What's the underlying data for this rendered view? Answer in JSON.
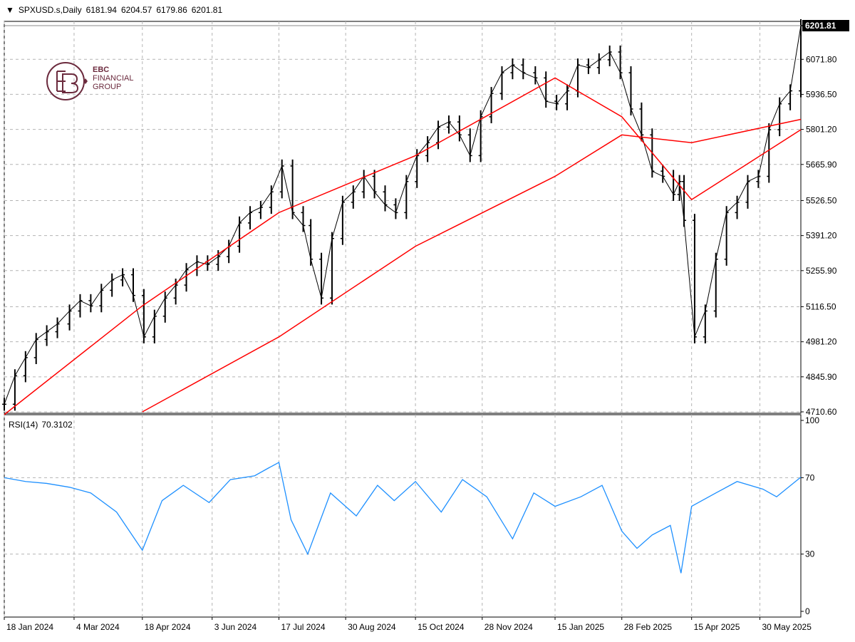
{
  "header": {
    "symbol": "SPXUSD.s,Daily",
    "open": "6181.94",
    "high": "6204.57",
    "low": "6179.86",
    "close": "6201.81"
  },
  "logo": {
    "line1": "EBC",
    "line2": "FINANCIAL",
    "line3": "GROUP",
    "brand_color": "#6b2a3d"
  },
  "rsi_header": {
    "label": "RSI(14)",
    "value": "70.3102"
  },
  "colors": {
    "price": "#000000",
    "ma": "#ff0000",
    "rsi": "#1e90ff",
    "grid": "#b4b4b4",
    "current_bg": "#000000"
  },
  "chart_data": [
    {
      "type": "line",
      "title": "SPXUSD.s,Daily",
      "style": "ohlc-bars",
      "ylim": [
        4710.6,
        6201.81
      ],
      "grid": true,
      "current_price_label": "6201.81",
      "y_ticks": [
        "6071.80",
        "5936.50",
        "5801.20",
        "5665.90",
        "5526.50",
        "5391.20",
        "5255.90",
        "5116.50",
        "4981.20",
        "4845.90",
        "4710.60"
      ],
      "x_ticks": [
        "18 Jan 2024",
        "4 Mar 2024",
        "18 Apr 2024",
        "3 Jun 2024",
        "17 Jul 2024",
        "30 Aug 2024",
        "15 Oct 2024",
        "28 Nov 2024",
        "15 Jan 2025",
        "28 Feb 2025",
        "15 Apr 2025",
        "30 May 2025"
      ],
      "series": [
        {
          "name": "price",
          "x": [
            "2024-01-18",
            "2024-01-25",
            "2024-02-01",
            "2024-02-08",
            "2024-02-15",
            "2024-02-22",
            "2024-03-01",
            "2024-03-08",
            "2024-03-15",
            "2024-03-22",
            "2024-03-29",
            "2024-04-05",
            "2024-04-12",
            "2024-04-19",
            "2024-04-26",
            "2024-05-03",
            "2024-05-10",
            "2024-05-17",
            "2024-05-24",
            "2024-05-31",
            "2024-06-07",
            "2024-06-14",
            "2024-06-21",
            "2024-06-28",
            "2024-07-05",
            "2024-07-12",
            "2024-07-19",
            "2024-07-26",
            "2024-08-02",
            "2024-08-07",
            "2024-08-14",
            "2024-08-21",
            "2024-08-28",
            "2024-09-04",
            "2024-09-11",
            "2024-09-18",
            "2024-09-25",
            "2024-10-02",
            "2024-10-09",
            "2024-10-16",
            "2024-10-23",
            "2024-10-30",
            "2024-11-06",
            "2024-11-13",
            "2024-11-20",
            "2024-11-27",
            "2024-12-04",
            "2024-12-11",
            "2024-12-18",
            "2024-12-25",
            "2025-01-02",
            "2025-01-09",
            "2025-01-16",
            "2025-01-23",
            "2025-01-30",
            "2025-02-06",
            "2025-02-13",
            "2025-02-20",
            "2025-02-27",
            "2025-03-06",
            "2025-03-13",
            "2025-03-20",
            "2025-03-27",
            "2025-04-03",
            "2025-04-07",
            "2025-04-10",
            "2025-04-17",
            "2025-04-24",
            "2025-05-01",
            "2025-05-08",
            "2025-05-15",
            "2025-05-22",
            "2025-05-29",
            "2025-06-05",
            "2025-06-12",
            "2025-06-19",
            "2025-06-26"
          ],
          "values": [
            4740,
            4850,
            4920,
            4990,
            5020,
            5050,
            5100,
            5140,
            5120,
            5180,
            5220,
            5240,
            5160,
            5000,
            5080,
            5150,
            5200,
            5260,
            5290,
            5280,
            5310,
            5350,
            5440,
            5480,
            5500,
            5560,
            5660,
            5480,
            5430,
            5300,
            5150,
            5380,
            5520,
            5560,
            5620,
            5560,
            5510,
            5480,
            5600,
            5700,
            5750,
            5810,
            5830,
            5780,
            5700,
            5850,
            5940,
            6020,
            6050,
            6020,
            6000,
            5910,
            5900,
            5950,
            6050,
            6040,
            6070,
            6100,
            6020,
            5880,
            5780,
            5640,
            5620,
            5550,
            5600,
            5450,
            5000,
            5100,
            5300,
            5480,
            5520,
            5600,
            5620,
            5800,
            5900,
            5950,
            6201.81
          ]
        },
        {
          "name": "ma-fast",
          "x": [
            "2024-01-18",
            "2024-04-18",
            "2024-07-17",
            "2024-10-15",
            "2025-01-15",
            "2025-02-28",
            "2025-04-15",
            "2025-06-26"
          ],
          "values": [
            4700,
            5120,
            5480,
            5700,
            6000,
            5850,
            5530,
            5800
          ]
        },
        {
          "name": "ma-slow",
          "x": [
            "2024-04-18",
            "2024-07-17",
            "2024-10-15",
            "2025-01-15",
            "2025-02-28",
            "2025-04-15",
            "2025-06-26"
          ],
          "values": [
            4710.6,
            5000,
            5350,
            5620,
            5780,
            5750,
            5840
          ]
        }
      ]
    },
    {
      "type": "line",
      "title": "RSI(14) 70.3102",
      "ylim": [
        0,
        100
      ],
      "y_ticks": [
        "100",
        "70",
        "30",
        "0"
      ],
      "levels": [
        70,
        30
      ],
      "series": [
        {
          "name": "RSI(14)",
          "x": [
            "2024-01-18",
            "2024-02-01",
            "2024-02-15",
            "2024-03-01",
            "2024-03-15",
            "2024-04-01",
            "2024-04-18",
            "2024-05-01",
            "2024-05-15",
            "2024-06-01",
            "2024-06-15",
            "2024-07-01",
            "2024-07-10",
            "2024-07-17",
            "2024-07-25",
            "2024-08-05",
            "2024-08-20",
            "2024-09-06",
            "2024-09-20",
            "2024-10-01",
            "2024-10-15",
            "2024-11-01",
            "2024-11-15",
            "2024-12-01",
            "2024-12-18",
            "2025-01-01",
            "2025-01-15",
            "2025-02-01",
            "2025-02-15",
            "2025-02-28",
            "2025-03-10",
            "2025-03-20",
            "2025-04-01",
            "2025-04-08",
            "2025-04-15",
            "2025-05-01",
            "2025-05-15",
            "2025-06-01",
            "2025-06-10",
            "2025-06-26"
          ],
          "values": [
            70,
            68,
            67,
            65,
            62,
            52,
            32,
            58,
            66,
            57,
            69,
            71,
            75,
            78,
            48,
            30,
            62,
            50,
            66,
            58,
            68,
            52,
            69,
            60,
            38,
            62,
            55,
            60,
            66,
            42,
            33,
            40,
            45,
            20,
            55,
            62,
            68,
            64,
            60,
            70.31
          ]
        }
      ]
    }
  ]
}
